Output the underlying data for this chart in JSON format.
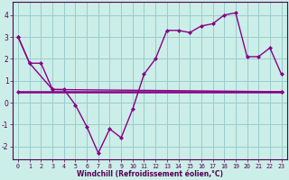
{
  "xlabel": "Windchill (Refroidissement éolien,°C)",
  "bg_color": "#cceee8",
  "line_color": "#880088",
  "grid_color": "#99cccc",
  "axis_color": "#550055",
  "xlim": [
    -0.5,
    23.5
  ],
  "ylim": [
    -2.6,
    4.6
  ],
  "yticks": [
    -2,
    -1,
    0,
    1,
    2,
    3,
    4
  ],
  "xticks": [
    0,
    1,
    2,
    3,
    4,
    5,
    6,
    7,
    8,
    9,
    10,
    11,
    12,
    13,
    14,
    15,
    16,
    17,
    18,
    19,
    20,
    21,
    22,
    23
  ],
  "series1_x": [
    0,
    1,
    2,
    3,
    4,
    5,
    6,
    7,
    8,
    9,
    10,
    11,
    12,
    13,
    14,
    15,
    16,
    17,
    18,
    19,
    20,
    21,
    22,
    23
  ],
  "series1_y": [
    3.0,
    1.8,
    1.8,
    0.6,
    0.6,
    -0.1,
    -1.1,
    -2.3,
    -1.2,
    -1.6,
    -0.3,
    1.3,
    2.0,
    3.3,
    3.3,
    3.2,
    3.5,
    3.6,
    4.0,
    4.1,
    2.1,
    2.1,
    2.5,
    1.3
  ],
  "series2_x": [
    0,
    1,
    3,
    23
  ],
  "series2_y": [
    3.0,
    1.8,
    0.6,
    0.5
  ],
  "series3_x": [
    0,
    23
  ],
  "series3_y": [
    0.5,
    0.5
  ]
}
